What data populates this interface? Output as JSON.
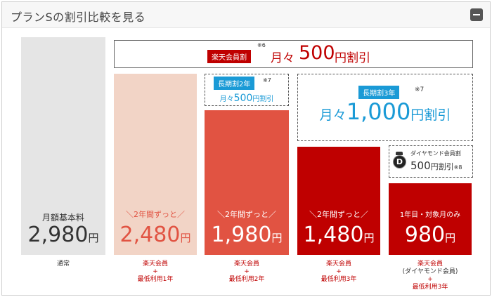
{
  "header": {
    "title": "プランSの割引比較を見る"
  },
  "banner": {
    "tag": "楽天会員割",
    "note": "※6",
    "text_prefix": "月々",
    "text_amount": "500",
    "text_suffix": "円割引"
  },
  "col1": {
    "label": "月額基本料",
    "price": "2,980",
    "unit": "円",
    "sub": "通常"
  },
  "col2": {
    "caption": "＼2年間ずっと／",
    "price": "2,480",
    "unit": "円",
    "sub": [
      "楽天会員",
      "+",
      "最低利用1年"
    ]
  },
  "col3": {
    "caption": "＼2年間ずっと／",
    "price": "1,980",
    "unit": "円",
    "sub": [
      "楽天会員",
      "+",
      "最低利用2年"
    ],
    "promo": {
      "tag": "長期割2年",
      "note": "※7",
      "prefix": "月々",
      "amount": "500",
      "suffix": "円割引"
    }
  },
  "col4": {
    "caption": "＼2年間ずっと／",
    "price": "1,480",
    "unit": "円",
    "sub": [
      "楽天会員",
      "+",
      "最低利用3年"
    ],
    "promo": {
      "tag": "長期割3年",
      "note": "※7",
      "prefix": "月々",
      "amount": "1,000",
      "suffix": "円割引"
    }
  },
  "col5": {
    "caption": "1年目・対象月のみ",
    "price": "980",
    "unit": "円",
    "sub": [
      "楽天会員",
      "(ダイヤモンド会員)",
      "+",
      "最低利用3年"
    ],
    "promo": {
      "badge_letter": "D",
      "label": "ダイヤモンド会員割",
      "amount": "500",
      "suffix": "円割引",
      "note": "※8"
    }
  },
  "colors": {
    "gray": "#e5e5e5",
    "pale": "#f2d4c6",
    "mid": "#e15342",
    "deep": "#bf0000",
    "blue": "#1a9ad6"
  }
}
